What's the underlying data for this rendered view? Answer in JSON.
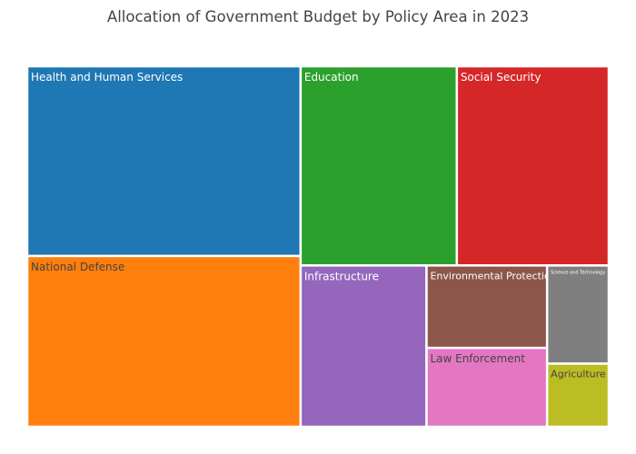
{
  "chart_data": {
    "type": "treemap",
    "title": "Allocation of Government Budget by Policy Area in 2023",
    "unit": "",
    "items": [
      {
        "label": "Health and Human Services",
        "value": 120,
        "color": "#1f77b4",
        "text_color": "#ffffff"
      },
      {
        "label": "National Defense",
        "value": 108,
        "color": "#ff7f0e",
        "text_color": "#444444"
      },
      {
        "label": "Education",
        "value": 72,
        "color": "#2ca02c",
        "text_color": "#ffffff"
      },
      {
        "label": "Social Security",
        "value": 70,
        "color": "#d62728",
        "text_color": "#ffffff"
      },
      {
        "label": "Infrastructure",
        "value": 47,
        "color": "#9467bd",
        "text_color": "#ffffff"
      },
      {
        "label": "Environmental Protection",
        "value": 23,
        "color": "#8c564b",
        "text_color": "#ffffff"
      },
      {
        "label": "Law Enforcement",
        "value": 22,
        "color": "#e377c2",
        "text_color": "#444444"
      },
      {
        "label": "Science and Technology",
        "value": 14,
        "color": "#7f7f7f",
        "text_color": "#ffffff"
      },
      {
        "label": "Agriculture",
        "value": 9,
        "color": "#bcbd22",
        "text_color": "#444444"
      }
    ]
  }
}
